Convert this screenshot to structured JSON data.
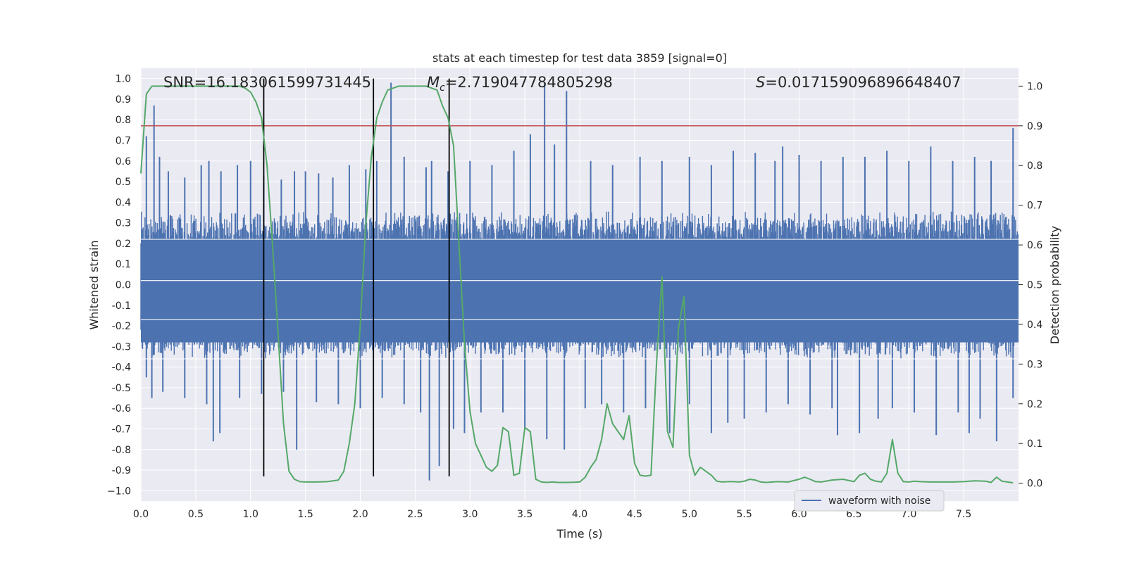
{
  "chart_data": {
    "type": "line",
    "title": "stats at each timestep for test data 3859 [signal=0]",
    "xlabel": "Time (s)",
    "ylabel": "Whitened strain",
    "ylabel_right": "Detection probability",
    "xlim": [
      0,
      8
    ],
    "ylim": [
      -1.05,
      1.05
    ],
    "ylim_right": [
      -0.045,
      1.045
    ],
    "x_ticks": [
      "0.0",
      "0.5",
      "1.0",
      "1.5",
      "2.0",
      "2.5",
      "3.0",
      "3.5",
      "4.0",
      "4.5",
      "5.0",
      "5.5",
      "6.0",
      "6.5",
      "7.0",
      "7.5"
    ],
    "y_ticks": [
      "1.0",
      "0.9",
      "0.8",
      "0.7",
      "0.6",
      "0.5",
      "0.4",
      "0.3",
      "0.2",
      "0.1",
      "0.0",
      "-0.1",
      "-0.2",
      "-0.3",
      "-0.4",
      "-0.5",
      "-0.6",
      "-0.7",
      "-0.8",
      "-0.9",
      "−1.0"
    ],
    "y_ticks_right": [
      "1.0",
      "0.9",
      "0.8",
      "0.7",
      "0.6",
      "0.5",
      "0.4",
      "0.3",
      "0.2",
      "0.1",
      "0.0"
    ],
    "grid": true,
    "legend_placement": "lower-right",
    "annotations": {
      "snr": "SNR=16.183061599731445",
      "mc_prefix": "M",
      "mc_sub": "c",
      "mc_value": "=2.719047784805298",
      "s_prefix": "S",
      "s_value": "=0.017159096896648407"
    },
    "threshold": 0.9,
    "vertical_lines_x": [
      1.12,
      2.12,
      2.81
    ],
    "series": [
      {
        "name": "waveform with noise",
        "color": "#4c72b0",
        "band": 0.32,
        "spikes": [
          [
            0.05,
            0.72
          ],
          [
            0.12,
            0.87
          ],
          [
            0.17,
            0.62
          ],
          [
            0.25,
            0.55
          ],
          [
            0.4,
            0.52
          ],
          [
            0.55,
            0.58
          ],
          [
            0.62,
            0.6
          ],
          [
            0.73,
            0.55
          ],
          [
            0.88,
            0.58
          ],
          [
            1.0,
            0.6
          ],
          [
            1.12,
            0.53
          ],
          [
            1.28,
            0.51
          ],
          [
            1.4,
            0.55
          ],
          [
            1.5,
            0.55
          ],
          [
            1.62,
            0.54
          ],
          [
            1.75,
            0.52
          ],
          [
            1.9,
            0.58
          ],
          [
            2.05,
            0.56
          ],
          [
            2.15,
            0.6
          ],
          [
            2.28,
            0.98
          ],
          [
            2.4,
            0.62
          ],
          [
            2.6,
            0.57
          ],
          [
            2.65,
            0.6
          ],
          [
            2.8,
            0.55
          ],
          [
            3.0,
            0.6
          ],
          [
            3.2,
            0.58
          ],
          [
            3.4,
            0.65
          ],
          [
            3.55,
            0.73
          ],
          [
            3.68,
            0.98
          ],
          [
            3.77,
            0.68
          ],
          [
            3.88,
            0.94
          ],
          [
            4.1,
            0.6
          ],
          [
            4.3,
            0.58
          ],
          [
            4.55,
            0.62
          ],
          [
            4.75,
            0.6
          ],
          [
            5.0,
            0.62
          ],
          [
            5.2,
            0.58
          ],
          [
            5.4,
            0.65
          ],
          [
            5.6,
            0.64
          ],
          [
            5.78,
            0.6
          ],
          [
            5.85,
            0.67
          ],
          [
            6.0,
            0.63
          ],
          [
            6.2,
            0.6
          ],
          [
            6.4,
            0.62
          ],
          [
            6.6,
            0.62
          ],
          [
            6.8,
            0.65
          ],
          [
            7.0,
            0.6
          ],
          [
            7.2,
            0.67
          ],
          [
            7.4,
            0.6
          ],
          [
            7.6,
            0.62
          ],
          [
            7.75,
            0.6
          ],
          [
            7.95,
            0.76
          ]
        ],
        "neg_spikes": [
          [
            0.05,
            -0.45
          ],
          [
            0.1,
            -0.55
          ],
          [
            0.2,
            -0.52
          ],
          [
            0.4,
            -0.55
          ],
          [
            0.6,
            -0.58
          ],
          [
            0.66,
            -0.76
          ],
          [
            0.72,
            -0.72
          ],
          [
            0.9,
            -0.55
          ],
          [
            1.1,
            -0.53
          ],
          [
            1.3,
            -0.52
          ],
          [
            1.42,
            -0.8
          ],
          [
            1.6,
            -0.57
          ],
          [
            1.8,
            -0.58
          ],
          [
            2.0,
            -0.6
          ],
          [
            2.2,
            -0.55
          ],
          [
            2.4,
            -0.58
          ],
          [
            2.55,
            -0.62
          ],
          [
            2.63,
            -0.95
          ],
          [
            2.72,
            -0.88
          ],
          [
            2.85,
            -0.7
          ],
          [
            2.95,
            -0.72
          ],
          [
            3.1,
            -0.62
          ],
          [
            3.3,
            -0.62
          ],
          [
            3.5,
            -0.7
          ],
          [
            3.7,
            -0.75
          ],
          [
            3.86,
            -0.8
          ],
          [
            4.05,
            -0.6
          ],
          [
            4.2,
            -0.58
          ],
          [
            4.4,
            -0.62
          ],
          [
            4.6,
            -0.6
          ],
          [
            4.82,
            -0.72
          ],
          [
            5.0,
            -0.58
          ],
          [
            5.2,
            -0.72
          ],
          [
            5.35,
            -0.67
          ],
          [
            5.5,
            -0.65
          ],
          [
            5.7,
            -0.62
          ],
          [
            5.9,
            -0.58
          ],
          [
            6.1,
            -0.63
          ],
          [
            6.3,
            -0.6
          ],
          [
            6.35,
            -0.73
          ],
          [
            6.55,
            -0.72
          ],
          [
            6.72,
            -0.65
          ],
          [
            6.85,
            -0.6
          ],
          [
            7.05,
            -0.62
          ],
          [
            7.25,
            -0.73
          ],
          [
            7.45,
            -0.62
          ],
          [
            7.55,
            -0.72
          ],
          [
            7.65,
            -0.65
          ],
          [
            7.8,
            -0.76
          ],
          [
            7.95,
            -0.55
          ]
        ]
      },
      {
        "name": "detection probability",
        "color": "#55a868",
        "axis": "right",
        "x": [
          0.0,
          0.05,
          0.1,
          0.15,
          0.2,
          0.3,
          0.4,
          0.5,
          0.6,
          0.7,
          0.8,
          0.9,
          0.95,
          1.0,
          1.05,
          1.1,
          1.15,
          1.2,
          1.25,
          1.3,
          1.35,
          1.4,
          1.45,
          1.5,
          1.6,
          1.7,
          1.8,
          1.85,
          1.9,
          1.95,
          2.0,
          2.05,
          2.1,
          2.15,
          2.2,
          2.25,
          2.3,
          2.35,
          2.4,
          2.5,
          2.6,
          2.7,
          2.75,
          2.8,
          2.85,
          2.9,
          2.95,
          3.0,
          3.05,
          3.1,
          3.15,
          3.2,
          3.25,
          3.3,
          3.35,
          3.4,
          3.45,
          3.5,
          3.55,
          3.6,
          3.65,
          3.7,
          3.75,
          3.8,
          3.9,
          4.0,
          4.05,
          4.1,
          4.15,
          4.2,
          4.25,
          4.3,
          4.35,
          4.4,
          4.45,
          4.5,
          4.55,
          4.6,
          4.65,
          4.7,
          4.75,
          4.8,
          4.85,
          4.9,
          4.95,
          5.0,
          5.05,
          5.1,
          5.15,
          5.2,
          5.25,
          5.3,
          5.35,
          5.4,
          5.45,
          5.5,
          5.55,
          5.6,
          5.65,
          5.7,
          5.8,
          5.9,
          6.0,
          6.05,
          6.1,
          6.15,
          6.2,
          6.3,
          6.4,
          6.5,
          6.55,
          6.6,
          6.65,
          6.7,
          6.75,
          6.8,
          6.85,
          6.9,
          6.95,
          7.0,
          7.05,
          7.1,
          7.2,
          7.3,
          7.4,
          7.5,
          7.6,
          7.7,
          7.75,
          7.8,
          7.85,
          7.9,
          7.95
        ],
        "y": [
          0.78,
          0.98,
          1.0,
          1.0,
          1.0,
          1.0,
          1.0,
          1.0,
          1.0,
          1.0,
          1.0,
          1.0,
          0.995,
          0.985,
          0.96,
          0.92,
          0.8,
          0.6,
          0.38,
          0.15,
          0.03,
          0.01,
          0.004,
          0.003,
          0.003,
          0.004,
          0.008,
          0.03,
          0.1,
          0.2,
          0.4,
          0.65,
          0.82,
          0.92,
          0.96,
          0.99,
          0.995,
          1.0,
          1.0,
          1.0,
          1.0,
          0.99,
          0.95,
          0.92,
          0.85,
          0.6,
          0.35,
          0.18,
          0.1,
          0.07,
          0.04,
          0.03,
          0.045,
          0.14,
          0.13,
          0.02,
          0.025,
          0.14,
          0.13,
          0.01,
          0.003,
          0.002,
          0.003,
          0.002,
          0.002,
          0.003,
          0.015,
          0.04,
          0.06,
          0.11,
          0.2,
          0.15,
          0.13,
          0.11,
          0.17,
          0.05,
          0.02,
          0.018,
          0.02,
          0.3,
          0.52,
          0.13,
          0.09,
          0.39,
          0.47,
          0.07,
          0.02,
          0.04,
          0.03,
          0.02,
          0.005,
          0.003,
          0.004,
          0.004,
          0.003,
          0.005,
          0.01,
          0.008,
          0.003,
          0.002,
          0.004,
          0.003,
          0.01,
          0.015,
          0.01,
          0.004,
          0.003,
          0.008,
          0.01,
          0.004,
          0.02,
          0.025,
          0.01,
          0.005,
          0.003,
          0.025,
          0.11,
          0.025,
          0.004,
          0.003,
          0.005,
          0.004,
          0.003,
          0.003,
          0.003,
          0.004,
          0.006,
          0.005,
          0.002,
          0.015,
          0.005,
          0.003,
          0.001
        ]
      }
    ],
    "legend_label": "waveform with noise",
    "colors": {
      "background": "#eaeaf2",
      "grid": "#ffffff",
      "threshold": "#c44e52",
      "vline": "#000000"
    }
  }
}
